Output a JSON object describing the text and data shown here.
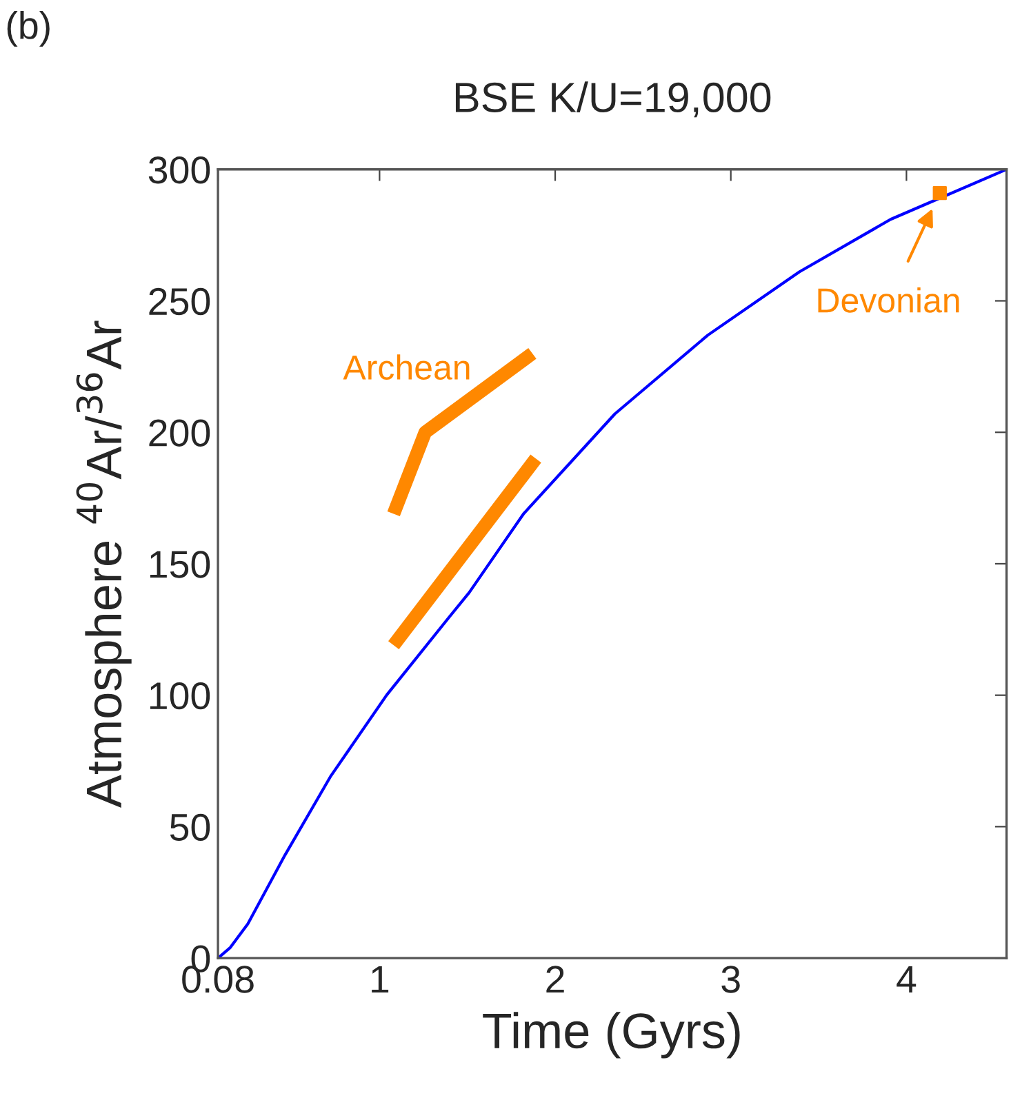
{
  "chart_data": {
    "type": "line",
    "title": "BSE K/U=19,000",
    "xlabel": "Time (Gyrs)",
    "ylabel": "Atmosphere $^{40}$Ar/$^{36}$Ar",
    "xlim": [
      0.08,
      4.57
    ],
    "xticks": [
      0.08,
      1,
      2,
      3,
      4
    ],
    "ylim": [
      0,
      300
    ],
    "yticks": [
      0,
      50,
      100,
      150,
      200,
      250,
      300
    ],
    "grid": false,
    "line_style": "solid",
    "series": [
      {
        "color": "#0000ff",
        "x": [
          0.08,
          0.15,
          0.25,
          0.46,
          0.72,
          1.04,
          1.4,
          1.51,
          1.82,
          2.34,
          2.87,
          3.39,
          3.91,
          4.57
        ],
        "values": [
          0,
          4,
          13,
          39,
          69,
          100,
          130,
          139,
          169,
          207,
          237,
          261,
          281,
          300
        ]
      },
      {
        "color": "#ff8800",
        "x": [
          1.08,
          1.26,
          1.87
        ],
        "values": [
          169,
          200,
          230
        ]
      },
      {
        "color": "#ff8800",
        "x": [
          1.08,
          1.89
        ],
        "values": [
          119,
          190
        ]
      },
      {
        "type": "scatter",
        "color": "#ff8800",
        "marker": "square",
        "x": [
          4.19
        ],
        "values": [
          291
        ]
      }
    ],
    "annotations": [
      "(b)",
      "Archean",
      "Devonian"
    ]
  }
}
